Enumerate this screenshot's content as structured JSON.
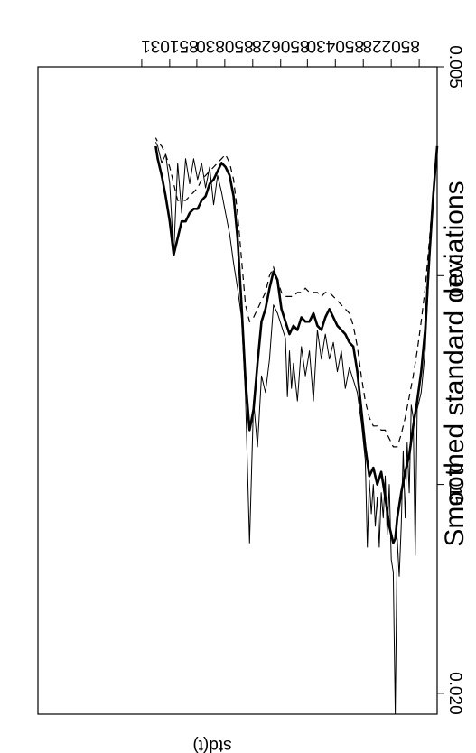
{
  "chart_data": {
    "type": "line",
    "title": "Smoothed standard deviations",
    "xlabel": "",
    "ylabel": "std(t)",
    "xlim": [
      0,
      1000
    ],
    "ylim": [
      0.005,
      0.0205
    ],
    "x_ticks": [
      {
        "pos": 115,
        "label": "850228"
      },
      {
        "pos": 255,
        "label": "850430"
      },
      {
        "pos": 392,
        "label": "850628"
      },
      {
        "pos": 532,
        "label": "850830"
      },
      {
        "pos": 670,
        "label": "851031"
      }
    ],
    "x_ticks_unlabeled": [
      45,
      185,
      325,
      462,
      602,
      740
    ],
    "y_ticks": [
      0.005,
      0.01,
      0.015,
      0.02
    ],
    "y_tick_labels": [
      "0.005",
      "0.010",
      "0.015",
      "0.020"
    ],
    "series": [
      {
        "style": "thin",
        "x": [
          0,
          10,
          20,
          30,
          40,
          50,
          55,
          60,
          65,
          70,
          75,
          80,
          85,
          90,
          95,
          100,
          105,
          110,
          115,
          120,
          125,
          130,
          135,
          140,
          145,
          150,
          155,
          160,
          165,
          170,
          175,
          180,
          190,
          200,
          210,
          220,
          230,
          240,
          250,
          260,
          270,
          280,
          290,
          300,
          310,
          320,
          330,
          340,
          350,
          360,
          365,
          370,
          375,
          380,
          390,
          400,
          410,
          420,
          430,
          440,
          450,
          460,
          470,
          480,
          490,
          500,
          510,
          520,
          530,
          540,
          550,
          560,
          570,
          580,
          590,
          600,
          610,
          620,
          630,
          640,
          650,
          660,
          670,
          680,
          690,
          700,
          705
        ],
        "y": [
          0.0069,
          0.0082,
          0.0098,
          0.0118,
          0.0128,
          0.0132,
          0.0167,
          0.0134,
          0.0131,
          0.0152,
          0.014,
          0.0158,
          0.0142,
          0.016,
          0.0172,
          0.0163,
          0.0205,
          0.0171,
          0.0168,
          0.015,
          0.0162,
          0.0148,
          0.0158,
          0.0152,
          0.0165,
          0.0153,
          0.016,
          0.015,
          0.0157,
          0.0149,
          0.0165,
          0.0144,
          0.0135,
          0.0128,
          0.0125,
          0.0122,
          0.0127,
          0.0118,
          0.0123,
          0.0116,
          0.012,
          0.0114,
          0.012,
          0.0113,
          0.013,
          0.0118,
          0.0124,
          0.0117,
          0.013,
          0.0121,
          0.0127,
          0.0118,
          0.0129,
          0.0115,
          0.0112,
          0.0109,
          0.0107,
          0.012,
          0.0128,
          0.0124,
          0.0141,
          0.013,
          0.0164,
          0.0129,
          0.011,
          0.0103,
          0.0097,
          0.009,
          0.0085,
          0.008,
          0.0076,
          0.0083,
          0.0074,
          0.0079,
          0.0073,
          0.0077,
          0.0072,
          0.0078,
          0.0072,
          0.0085,
          0.0073,
          0.0095,
          0.0078,
          0.0071,
          0.0073,
          0.0069,
          0.0068
        ]
      },
      {
        "style": "thick",
        "x": [
          0,
          10,
          20,
          30,
          40,
          50,
          60,
          70,
          80,
          90,
          100,
          105,
          110,
          120,
          130,
          140,
          150,
          160,
          170,
          180,
          190,
          200,
          210,
          220,
          230,
          240,
          250,
          260,
          270,
          280,
          290,
          300,
          310,
          320,
          330,
          340,
          350,
          360,
          370,
          380,
          390,
          400,
          410,
          420,
          430,
          440,
          450,
          460,
          470,
          480,
          490,
          500,
          510,
          520,
          530,
          540,
          550,
          560,
          570,
          580,
          590,
          600,
          610,
          620,
          630,
          640,
          650,
          660,
          670,
          680,
          690,
          700,
          705
        ],
        "y": [
          0.0069,
          0.0081,
          0.0096,
          0.0113,
          0.0123,
          0.013,
          0.0136,
          0.0143,
          0.0147,
          0.0152,
          0.0158,
          0.0163,
          0.0164,
          0.016,
          0.0153,
          0.0147,
          0.015,
          0.0146,
          0.0148,
          0.0141,
          0.0132,
          0.0123,
          0.0117,
          0.0116,
          0.0114,
          0.0113,
          0.0112,
          0.011,
          0.0108,
          0.011,
          0.0113,
          0.0112,
          0.0109,
          0.0111,
          0.0111,
          0.011,
          0.0113,
          0.0112,
          0.0114,
          0.0111,
          0.0108,
          0.0101,
          0.0099,
          0.0103,
          0.0108,
          0.0111,
          0.0121,
          0.0132,
          0.0137,
          0.0125,
          0.0107,
          0.0091,
          0.0081,
          0.0076,
          0.0074,
          0.0073,
          0.0075,
          0.0077,
          0.0078,
          0.0081,
          0.0082,
          0.0084,
          0.0084,
          0.0085,
          0.0087,
          0.0087,
          0.0091,
          0.0095,
          0.0087,
          0.0081,
          0.0076,
          0.0072,
          0.0069
        ]
      },
      {
        "style": "dashed",
        "x": [
          0,
          10,
          20,
          30,
          40,
          50,
          60,
          70,
          80,
          90,
          100,
          110,
          120,
          130,
          140,
          150,
          160,
          170,
          180,
          190,
          200,
          210,
          220,
          230,
          240,
          250,
          260,
          270,
          280,
          290,
          300,
          310,
          320,
          330,
          340,
          350,
          360,
          370,
          380,
          390,
          400,
          410,
          420,
          430,
          440,
          450,
          460,
          470,
          480,
          490,
          500,
          510,
          520,
          530,
          540,
          550,
          560,
          570,
          580,
          590,
          600,
          610,
          620,
          630,
          640,
          650,
          660,
          670,
          680,
          690,
          700,
          705
        ],
        "y": [
          0.0069,
          0.008,
          0.0092,
          0.0103,
          0.0111,
          0.0118,
          0.0124,
          0.0129,
          0.0134,
          0.0138,
          0.0141,
          0.0141,
          0.0139,
          0.0137,
          0.0137,
          0.0136,
          0.0136,
          0.0134,
          0.013,
          0.0124,
          0.0117,
          0.0112,
          0.0109,
          0.0108,
          0.0107,
          0.0106,
          0.0105,
          0.0104,
          0.0104,
          0.0105,
          0.0104,
          0.0104,
          0.0104,
          0.0103,
          0.0104,
          0.0104,
          0.0105,
          0.0105,
          0.0105,
          0.0104,
          0.0101,
          0.0098,
          0.01,
          0.0104,
          0.0106,
          0.0108,
          0.011,
          0.0111,
          0.0107,
          0.0096,
          0.0085,
          0.0077,
          0.0073,
          0.0071,
          0.0072,
          0.0073,
          0.0074,
          0.0075,
          0.0076,
          0.0077,
          0.0079,
          0.008,
          0.0081,
          0.0082,
          0.0082,
          0.0082,
          0.0078,
          0.0074,
          0.0071,
          0.0069,
          0.0068,
          0.0067
        ]
      }
    ]
  }
}
